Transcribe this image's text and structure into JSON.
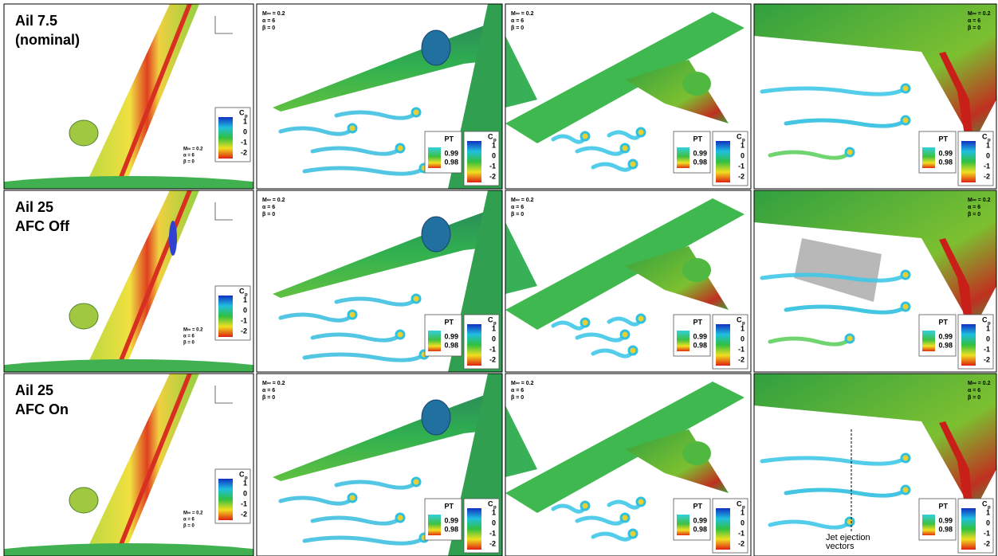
{
  "rows": [
    {
      "label": [
        "Ail 7.5",
        "(nominal)"
      ]
    },
    {
      "label": [
        "Ail  25",
        "AFC Off"
      ]
    },
    {
      "label": [
        "Ail 25",
        "AFC On"
      ]
    }
  ],
  "conditions": [
    "M∞ = 0.2",
    "α  = 6",
    "β  = 0"
  ],
  "legend": {
    "pt_title": "PT",
    "pt_ticks": [
      "0.99",
      "0.98"
    ],
    "cp_title": "C",
    "cp_sub": "p",
    "cp_ticks": [
      "1",
      "0",
      "-1",
      "-2"
    ]
  },
  "annotation": [
    "Jet ejection",
    "vectors"
  ]
}
